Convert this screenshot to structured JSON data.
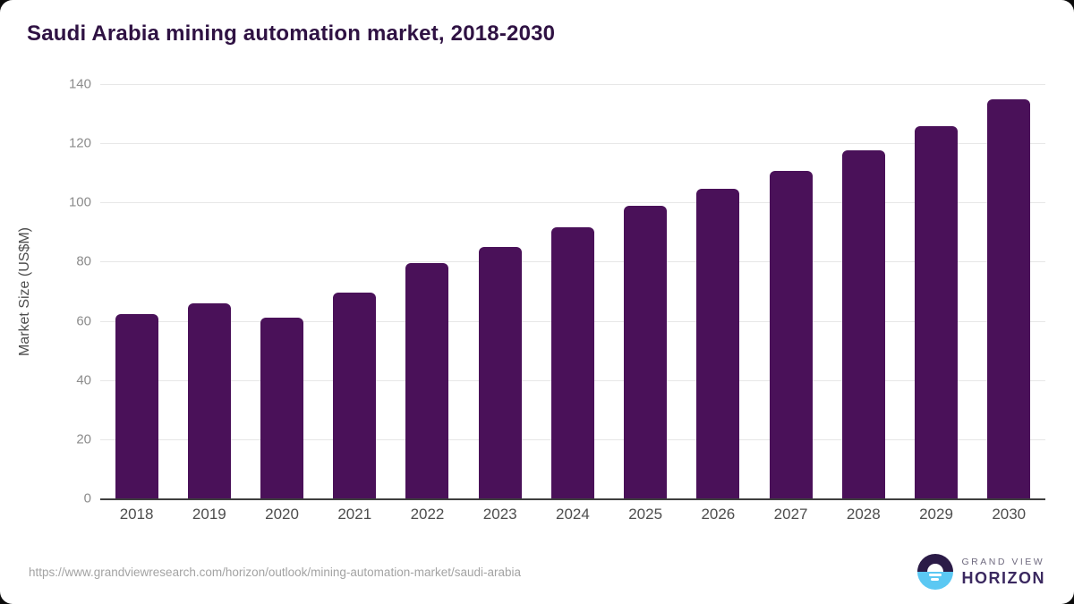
{
  "title": "Saudi Arabia mining automation market, 2018-2030",
  "chart_data": {
    "type": "bar",
    "title": "Saudi Arabia mining automation market, 2018-2030",
    "categories": [
      "2018",
      "2019",
      "2020",
      "2021",
      "2022",
      "2023",
      "2024",
      "2025",
      "2026",
      "2027",
      "2028",
      "2029",
      "2030"
    ],
    "values": [
      62.3,
      66.0,
      61.0,
      69.4,
      79.4,
      85.1,
      91.5,
      99.0,
      104.5,
      110.8,
      117.6,
      125.7,
      134.8
    ],
    "xlabel": "",
    "ylabel": "Market Size (US$M)",
    "yticks": [
      0,
      20,
      40,
      60,
      80,
      100,
      120,
      140
    ],
    "ylim": [
      0,
      140
    ],
    "grid": "horizontal",
    "legend": "none",
    "bar_color": "#4a1159"
  },
  "footer": {
    "source_url": "https://www.grandviewresearch.com/horizon/outlook/mining-automation-market/saudi-arabia",
    "logo": {
      "top_text": "GRAND VIEW",
      "bottom_text": "HORIZON"
    }
  },
  "colors": {
    "bar": "#4a1159",
    "title": "#2f1243",
    "gridline": "#e7e7e7",
    "axis_line": "#3f3f3f",
    "tick_label": "#8c8c8c",
    "x_label": "#4d4d4d",
    "source_text": "#a3a3a3",
    "logo_dark": "#2b1b47",
    "logo_blue": "#5bc8f3"
  }
}
